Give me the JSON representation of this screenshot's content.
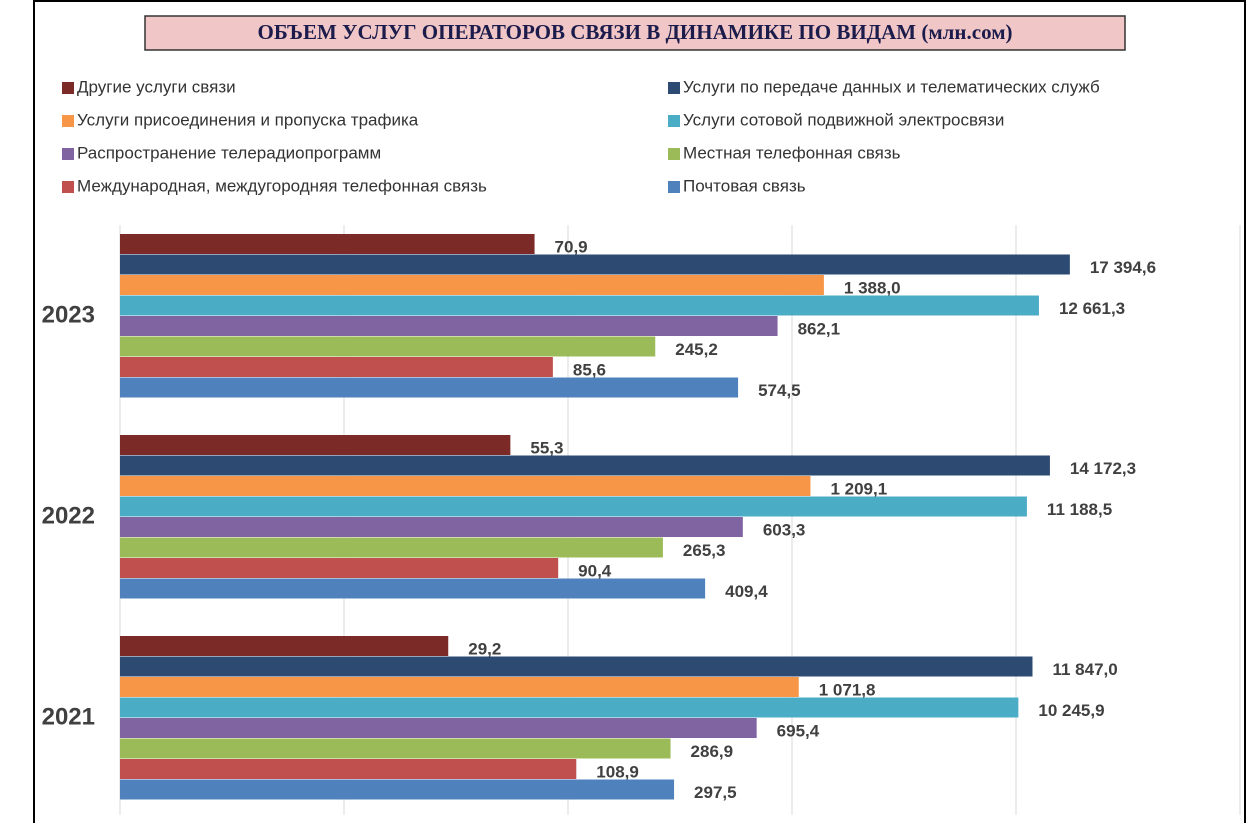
{
  "chart_data": {
    "type": "bar",
    "orientation": "horizontal",
    "title": "ОБЪЕМ УСЛУГ ОПЕРАТОРОВ СВЯЗИ В ДИНАМИКЕ ПО ВИДАМ (млн.сом)",
    "categories": [
      "2023",
      "2022",
      "2021"
    ],
    "xlim": [
      1,
      100000
    ],
    "xticks": [
      1,
      10,
      100,
      1000,
      10000,
      100000
    ],
    "log_scale": true,
    "grid": true,
    "legend": "top",
    "series": [
      {
        "name": "Другие услуги связи",
        "color": "#7b2a27",
        "values": [
          70.9,
          55.3,
          29.2
        ],
        "value_labels": [
          "70,9",
          "55,3",
          "29,2"
        ]
      },
      {
        "name": "Услуги по передаче данных и телематических служб",
        "color": "#2d4a73",
        "values": [
          17394.6,
          14172.3,
          11847.0
        ],
        "value_labels": [
          "17 394,6",
          "14 172,3",
          "11 847,0"
        ]
      },
      {
        "name": "Услуги присоединения и пропуска трафика",
        "color": "#f79646",
        "values": [
          1388.0,
          1209.1,
          1071.8
        ],
        "value_labels": [
          "1 388,0",
          "1 209,1",
          "1 071,8"
        ]
      },
      {
        "name": "Услуги сотовой подвижной электросвязи",
        "color": "#4bacc6",
        "values": [
          12661.3,
          11188.5,
          10245.9
        ],
        "value_labels": [
          "12 661,3",
          "11 188,5",
          "10 245,9"
        ]
      },
      {
        "name": "Распространение телерадиопрограмм",
        "color": "#8064a2",
        "values": [
          862.1,
          603.3,
          695.4
        ],
        "value_labels": [
          "862,1",
          "603,3",
          "695,4"
        ]
      },
      {
        "name": "Местная телефонная связь",
        "color": "#9bbb59",
        "values": [
          245.2,
          265.3,
          286.9
        ],
        "value_labels": [
          "245,2",
          "265,3",
          "286,9"
        ]
      },
      {
        "name": "Международная, междугородняя телефонная связь",
        "color": "#c0504d",
        "values": [
          85.6,
          90.4,
          108.9
        ],
        "value_labels": [
          "85,6",
          "90,4",
          "108,9"
        ]
      },
      {
        "name": "Почтовая связь",
        "color": "#4f81bd",
        "values": [
          574.5,
          409.4,
          297.5
        ],
        "value_labels": [
          "574,5",
          "409,4",
          "297,5"
        ]
      }
    ]
  }
}
